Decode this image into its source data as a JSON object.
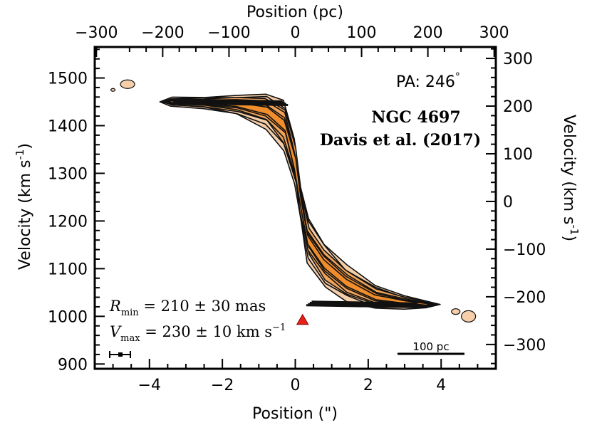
{
  "chart_data": {
    "type": "contour",
    "title": "",
    "object": "NGC 4697",
    "reference": "Davis et al. (2017)",
    "pa_label": "PA:  246",
    "pa_degree_symbol": "°",
    "xlabel_bottom": "Position (\")",
    "xlabel_top": "Position (pc)",
    "ylabel_left": "Velocity (km s",
    "ylabel_left_exp": "-1",
    "ylabel_left_close": ")",
    "ylabel_right": "Velocity (km s",
    "ylabel_right_exp": "-1",
    "ylabel_right_close": ")",
    "xlim_arcsec": [
      -5.5,
      5.5
    ],
    "ylim_kms": [
      890,
      1565
    ],
    "systemic_velocity": 1241,
    "pc_per_arcsec": 55,
    "x_ticks_bottom": [
      -4,
      -2,
      0,
      2,
      4
    ],
    "x_ticks_top": [
      -300,
      -200,
      -100,
      0,
      100,
      200,
      300
    ],
    "y_ticks_left": [
      900,
      1000,
      1100,
      1200,
      1300,
      1400,
      1500
    ],
    "y_ticks_right": [
      -300,
      -200,
      -100,
      0,
      100,
      200,
      300
    ],
    "x_tick_labels_bottom": [
      "-4",
      "-2",
      "0",
      "2",
      "4"
    ],
    "x_tick_labels_top": [
      "-300",
      "-200",
      "-100",
      "0",
      "100",
      "200",
      "300"
    ],
    "y_tick_labels_left": [
      "900",
      "1000",
      "1100",
      "1200",
      "1300",
      "1400",
      "1500"
    ],
    "y_tick_labels_right": [
      "-300",
      "-200",
      "-100",
      "0",
      "100",
      "200",
      "300"
    ],
    "annotation_rmin": "R_min = 210 ± 30 mas",
    "annotation_rmin_main": "R",
    "annotation_rmin_sub": "min",
    "annotation_rmin_rest": " = 210 ± 30 mas",
    "annotation_vmax_main": "V",
    "annotation_vmax_sub": "max",
    "annotation_vmax_rest": " = 230 ± 10 km s",
    "annotation_vmax_exp": "−1",
    "scalebar_label": "100 pc",
    "scalebar_pc": 100,
    "marker": {
      "x_arcsec": 0.2,
      "velocity": 992,
      "color": "#e8201a"
    },
    "colors": {
      "light": "#f6cfaa",
      "mid": "#f2a55a",
      "dark": "#f08d2c",
      "contour": "#111111"
    },
    "ridge": [
      {
        "x": -3.4,
        "v": 1450,
        "w": 14
      },
      {
        "x": -2.5,
        "v": 1448,
        "w": 20
      },
      {
        "x": -1.6,
        "v": 1444,
        "w": 34
      },
      {
        "x": -0.8,
        "v": 1432,
        "w": 60
      },
      {
        "x": -0.3,
        "v": 1400,
        "w": 80
      },
      {
        "x": 0.0,
        "v": 1320,
        "w": 75
      },
      {
        "x": 0.15,
        "v": 1240,
        "w": 55
      },
      {
        "x": 0.35,
        "v": 1160,
        "w": 70
      },
      {
        "x": 0.8,
        "v": 1110,
        "w": 75
      },
      {
        "x": 1.4,
        "v": 1070,
        "w": 60
      },
      {
        "x": 2.2,
        "v": 1040,
        "w": 40
      },
      {
        "x": 3.0,
        "v": 1030,
        "w": 22
      },
      {
        "x": 3.6,
        "v": 1025,
        "w": 12
      }
    ]
  }
}
